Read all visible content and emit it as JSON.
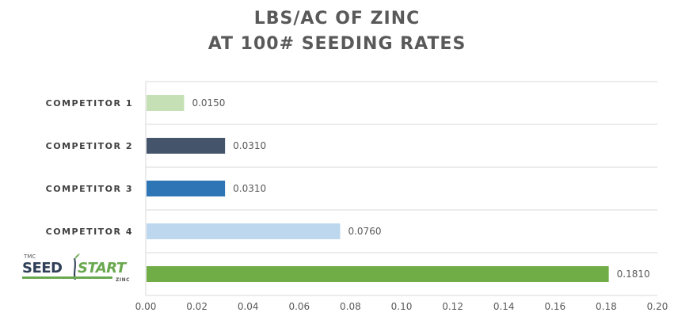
{
  "chart_data": {
    "type": "bar",
    "orientation": "horizontal",
    "title_lines": [
      "LBS/AC OF ZINC",
      "AT 100# SEEDING RATES"
    ],
    "categories": [
      "COMPETITOR 1",
      "COMPETITOR 2",
      "COMPETITOR 3",
      "COMPETITOR 4",
      "SEEDSTART ZINC"
    ],
    "values": [
      0.015,
      0.031,
      0.031,
      0.076,
      0.181
    ],
    "value_labels": [
      "0.0150",
      "0.0310",
      "0.0310",
      "0.0760",
      "0.1810"
    ],
    "colors": [
      "#c5e0b4",
      "#44546a",
      "#2e75b6",
      "#bdd7ee",
      "#70ad47"
    ],
    "xlim": [
      0,
      0.2
    ],
    "xticks": [
      "0.00",
      "0.02",
      "0.04",
      "0.06",
      "0.08",
      "0.10",
      "0.12",
      "0.14",
      "0.16",
      "0.18",
      "0.20"
    ],
    "grid": true
  },
  "logo": {
    "name": "SEEDSTART ZINC",
    "tmc": "TMC",
    "seed": "SEED",
    "start": "START",
    "zinc": "ZINC"
  }
}
